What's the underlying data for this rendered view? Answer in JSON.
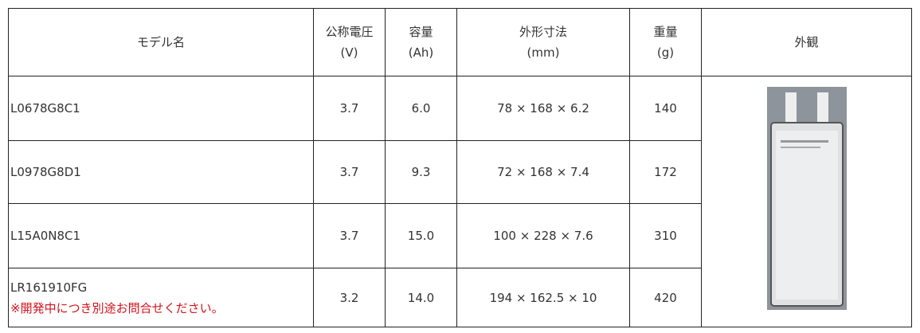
{
  "table": {
    "header": [
      [
        "モデル名"
      ],
      [
        "公称電圧",
        "(V)"
      ],
      [
        "容量",
        "(Ah)"
      ],
      [
        "外形寸法",
        "(mm)"
      ],
      [
        "重量",
        "(g)"
      ],
      [
        "外観"
      ]
    ],
    "rows": [
      {
        "model": "L0678G8C1",
        "voltage": "3.7",
        "capacity": "6.0",
        "dimensions": "78 × 168 × 6.2",
        "weight": "140"
      },
      {
        "model": "L0978G8D1",
        "voltage": "3.7",
        "capacity": "9.3",
        "dimensions": "72 × 168 × 7.4",
        "weight": "172"
      },
      {
        "model": "L15A0N8C1",
        "voltage": "3.7",
        "capacity": "15.0",
        "dimensions": "100 × 228 × 7.6",
        "weight": "310"
      },
      {
        "model": "LR161910FG",
        "note": "※開発中につき別途お問合せください。",
        "voltage": "3.2",
        "capacity": "14.0",
        "dimensions": "194 × 162.5 × 10",
        "weight": "420"
      }
    ]
  }
}
